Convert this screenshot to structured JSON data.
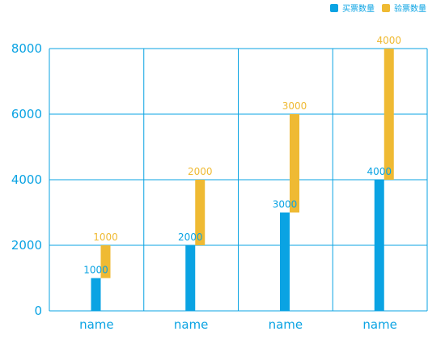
{
  "chart_data": {
    "type": "bar",
    "stacked": true,
    "categories": [
      "name",
      "name",
      "name",
      "name"
    ],
    "series": [
      {
        "name": "买票数量",
        "color": "#0aa3e3",
        "values": [
          1000,
          2000,
          3000,
          4000
        ]
      },
      {
        "name": "验票数量",
        "color": "#efba33",
        "values": [
          1000,
          2000,
          3000,
          4000
        ]
      }
    ],
    "y_ticks": [
      "0",
      "2000",
      "4000",
      "6000",
      "8000"
    ],
    "ylim": [
      0,
      8000
    ],
    "grid": true,
    "legend_position": "top-right",
    "axis_color": "#0aa3e3",
    "label_color": "#0aa3e3"
  }
}
